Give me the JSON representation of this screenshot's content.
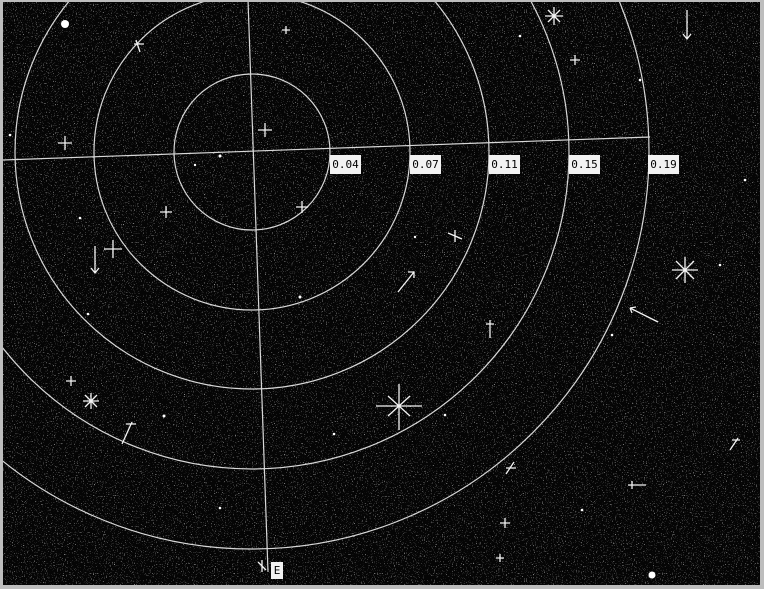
{
  "ring_labels": [
    "0.04",
    "0.07",
    "0.11",
    "0.15",
    "0.19"
  ],
  "direction_label": "E"
}
